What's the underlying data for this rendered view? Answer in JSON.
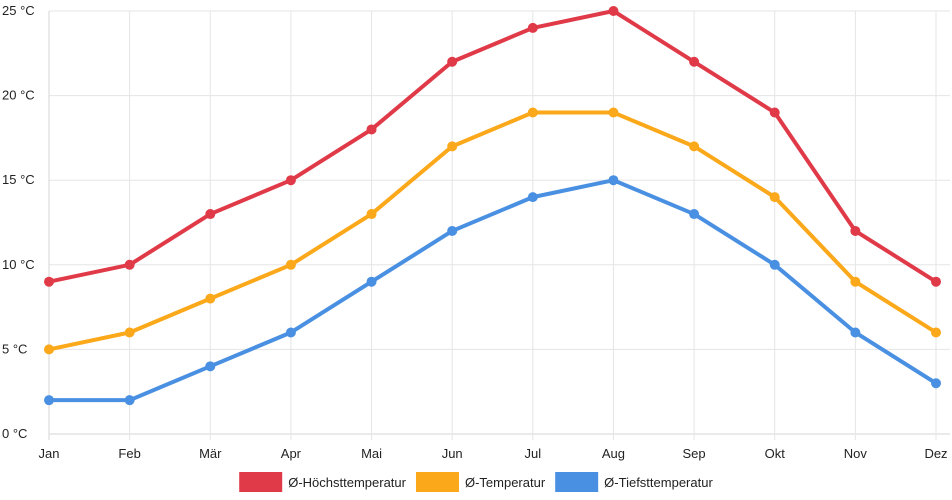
{
  "chart_data": {
    "type": "line",
    "title": "",
    "xlabel": "",
    "ylabel": "",
    "ylim": [
      0,
      25
    ],
    "y_ticks": [
      {
        "value": 0,
        "label": "0 °C"
      },
      {
        "value": 5,
        "label": "5 °C"
      },
      {
        "value": 10,
        "label": "10 °C"
      },
      {
        "value": 15,
        "label": "15 °C"
      },
      {
        "value": 20,
        "label": "20 °C"
      },
      {
        "value": 25,
        "label": "25 °C"
      }
    ],
    "categories": [
      "Jan",
      "Feb",
      "Mär",
      "Apr",
      "Mai",
      "Jun",
      "Jul",
      "Aug",
      "Sep",
      "Okt",
      "Nov",
      "Dez"
    ],
    "grid": true,
    "legend_position": "bottom-center",
    "series": [
      {
        "name": "Ø-Höchsttemperatur",
        "color": "#e03a48",
        "values": [
          9,
          10,
          13,
          15,
          18,
          22,
          24,
          25,
          22,
          19,
          12,
          9
        ]
      },
      {
        "name": "Ø-Temperatur",
        "color": "#fba81a",
        "values": [
          5,
          6,
          8,
          10,
          13,
          17,
          19,
          19,
          17,
          14,
          9,
          6
        ]
      },
      {
        "name": "Ø-Tiefsttemperatur",
        "color": "#4a90e2",
        "values": [
          2,
          2,
          4,
          6,
          9,
          12,
          14,
          15,
          13,
          10,
          6,
          3
        ]
      }
    ]
  }
}
